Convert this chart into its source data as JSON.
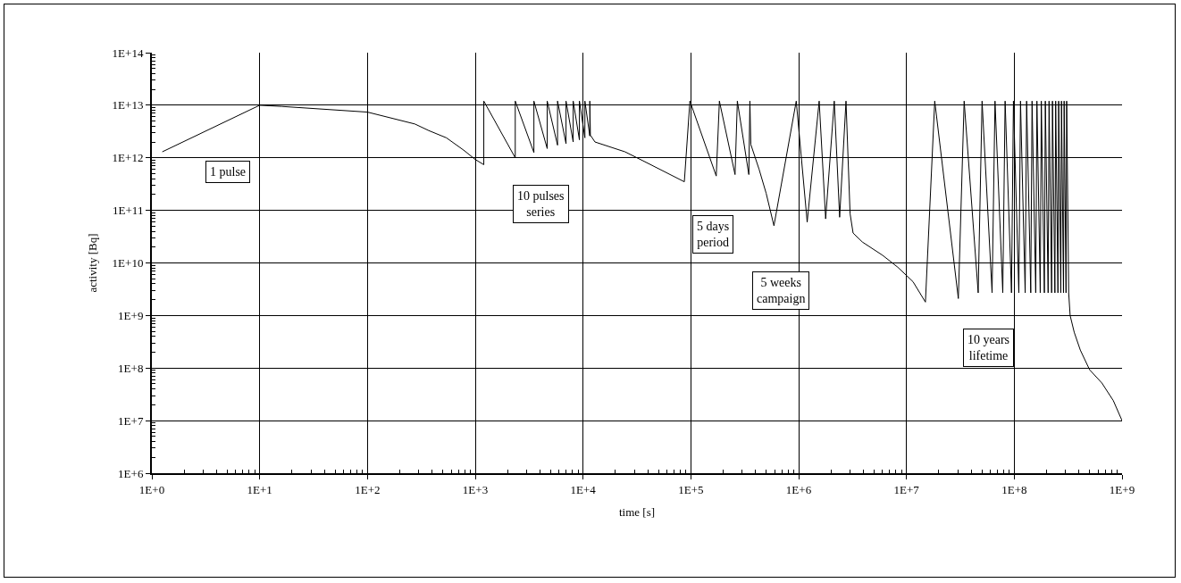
{
  "chart_data": {
    "type": "line",
    "xlabel": "time [s]",
    "ylabel": "activity [Bq]",
    "log": "xy",
    "grid": true,
    "marker": "none",
    "line_style": "solid",
    "xlim": [
      1,
      1000000000
    ],
    "ylim": [
      1000000,
      100000000000000
    ],
    "xticks": [
      {
        "value": 1,
        "label": "1E+0"
      },
      {
        "value": 10,
        "label": "1E+1"
      },
      {
        "value": 100,
        "label": "1E+2"
      },
      {
        "value": 1000,
        "label": "1E+3"
      },
      {
        "value": 10000,
        "label": "1E+4"
      },
      {
        "value": 100000,
        "label": "1E+5"
      },
      {
        "value": 1000000,
        "label": "1E+6"
      },
      {
        "value": 10000000,
        "label": "1E+7"
      },
      {
        "value": 100000000,
        "label": "1E+8"
      },
      {
        "value": 1000000000,
        "label": "1E+9"
      }
    ],
    "yticks": [
      {
        "value": 1000000,
        "label": "1E+6"
      },
      {
        "value": 10000000,
        "label": "1E+7"
      },
      {
        "value": 100000000,
        "label": "1E+8"
      },
      {
        "value": 1000000000,
        "label": "1E+9"
      },
      {
        "value": 10000000000,
        "label": "1E+10"
      },
      {
        "value": 100000000000,
        "label": "1E+11"
      },
      {
        "value": 1000000000000,
        "label": "1E+12"
      },
      {
        "value": 10000000000000,
        "label": "1E+13"
      },
      {
        "value": 100000000000000,
        "label": "1E+14"
      }
    ],
    "series": [
      {
        "color": "#000000",
        "x": [
          1.25,
          10,
          16,
          100,
          275,
          370,
          540,
          780,
          1000,
          1200,
          1200,
          2350,
          2350,
          3500,
          3500,
          4650,
          4650,
          5800,
          5800,
          6950,
          6950,
          8100,
          8100,
          9250,
          9250,
          10400,
          10400,
          11550,
          11550,
          11700,
          12900,
          24500,
          35500,
          87000,
          98000,
          172000,
          184000,
          257000,
          270000,
          345000,
          353000,
          360000,
          430000,
          500000,
          590000,
          950000,
          1200000,
          1550000,
          1780000,
          2140000,
          2400000,
          2750000,
          3000000,
          3200000,
          3900000,
          6000000,
          8300000,
          11500000,
          15000000,
          18300000,
          30300000,
          34300000,
          46300000,
          50300000,
          62300000,
          66300000,
          78300000,
          82300000,
          94300000,
          98300000,
          110300000,
          114300000,
          126300000,
          130300000,
          142300000,
          146300000,
          158300000,
          162300000,
          174300000,
          178300000,
          190300000,
          194300000,
          206300000,
          210300000,
          222300000,
          226300000,
          238300000,
          242300000,
          254300000,
          258300000,
          270300000,
          274300000,
          286300000,
          290300000,
          302300000,
          306300000,
          320000000,
          330000000,
          360000000,
          410000000,
          500000000,
          650000000,
          830000000,
          1000000000
        ],
        "values": [
          1300000000000,
          10000000000000,
          9500000000000,
          7400000000000,
          4400000000000,
          3300000000000,
          2400000000000,
          1400000000000,
          930000000000,
          740000000000,
          12000000000000,
          1000000000000,
          12000000000000,
          1260000000000,
          12000000000000,
          1500000000000,
          12000000000000,
          1740000000000,
          12000000000000,
          1860000000000,
          12000000000000,
          2000000000000,
          12000000000000,
          2200000000000,
          12000000000000,
          2400000000000,
          12000000000000,
          2600000000000,
          12000000000000,
          2700000000000,
          2000000000000,
          1300000000000,
          890000000000,
          350000000000,
          12000000000000,
          450000000000,
          12000000000000,
          480000000000,
          12000000000000,
          480000000000,
          12000000000000,
          1800000000000,
          600000000000,
          210000000000,
          51000000000,
          12000000000000,
          60000000000,
          12000000000000,
          69000000000,
          12000000000000,
          74000000000,
          12000000000000,
          87000000000,
          37000000000,
          25000000000,
          14000000000,
          8300000000,
          4400000000,
          1800000000,
          12000000000000,
          2100000000,
          12000000000000,
          2700000000,
          12000000000000,
          2700000000,
          12000000000000,
          2700000000,
          12000000000000,
          2700000000,
          12000000000000,
          2700000000,
          12000000000000,
          2700000000,
          12000000000000,
          2700000000,
          12000000000000,
          2700000000,
          12000000000000,
          2700000000,
          12000000000000,
          2700000000,
          12000000000000,
          2700000000,
          12000000000000,
          2700000000,
          12000000000000,
          2700000000,
          12000000000000,
          2700000000,
          12000000000000,
          2700000000,
          12000000000000,
          2700000000,
          12000000000000,
          2700000000,
          12000000000000,
          2700000000,
          1000000000,
          480000000,
          220000000,
          93000000,
          52000000,
          24000000,
          10000000
        ]
      }
    ],
    "annotations": [
      "1 pulse",
      "10 pulses\nseries",
      "5 days\nperiod",
      "5 weeks\ncampaign",
      "10 years\nlifetime"
    ]
  }
}
